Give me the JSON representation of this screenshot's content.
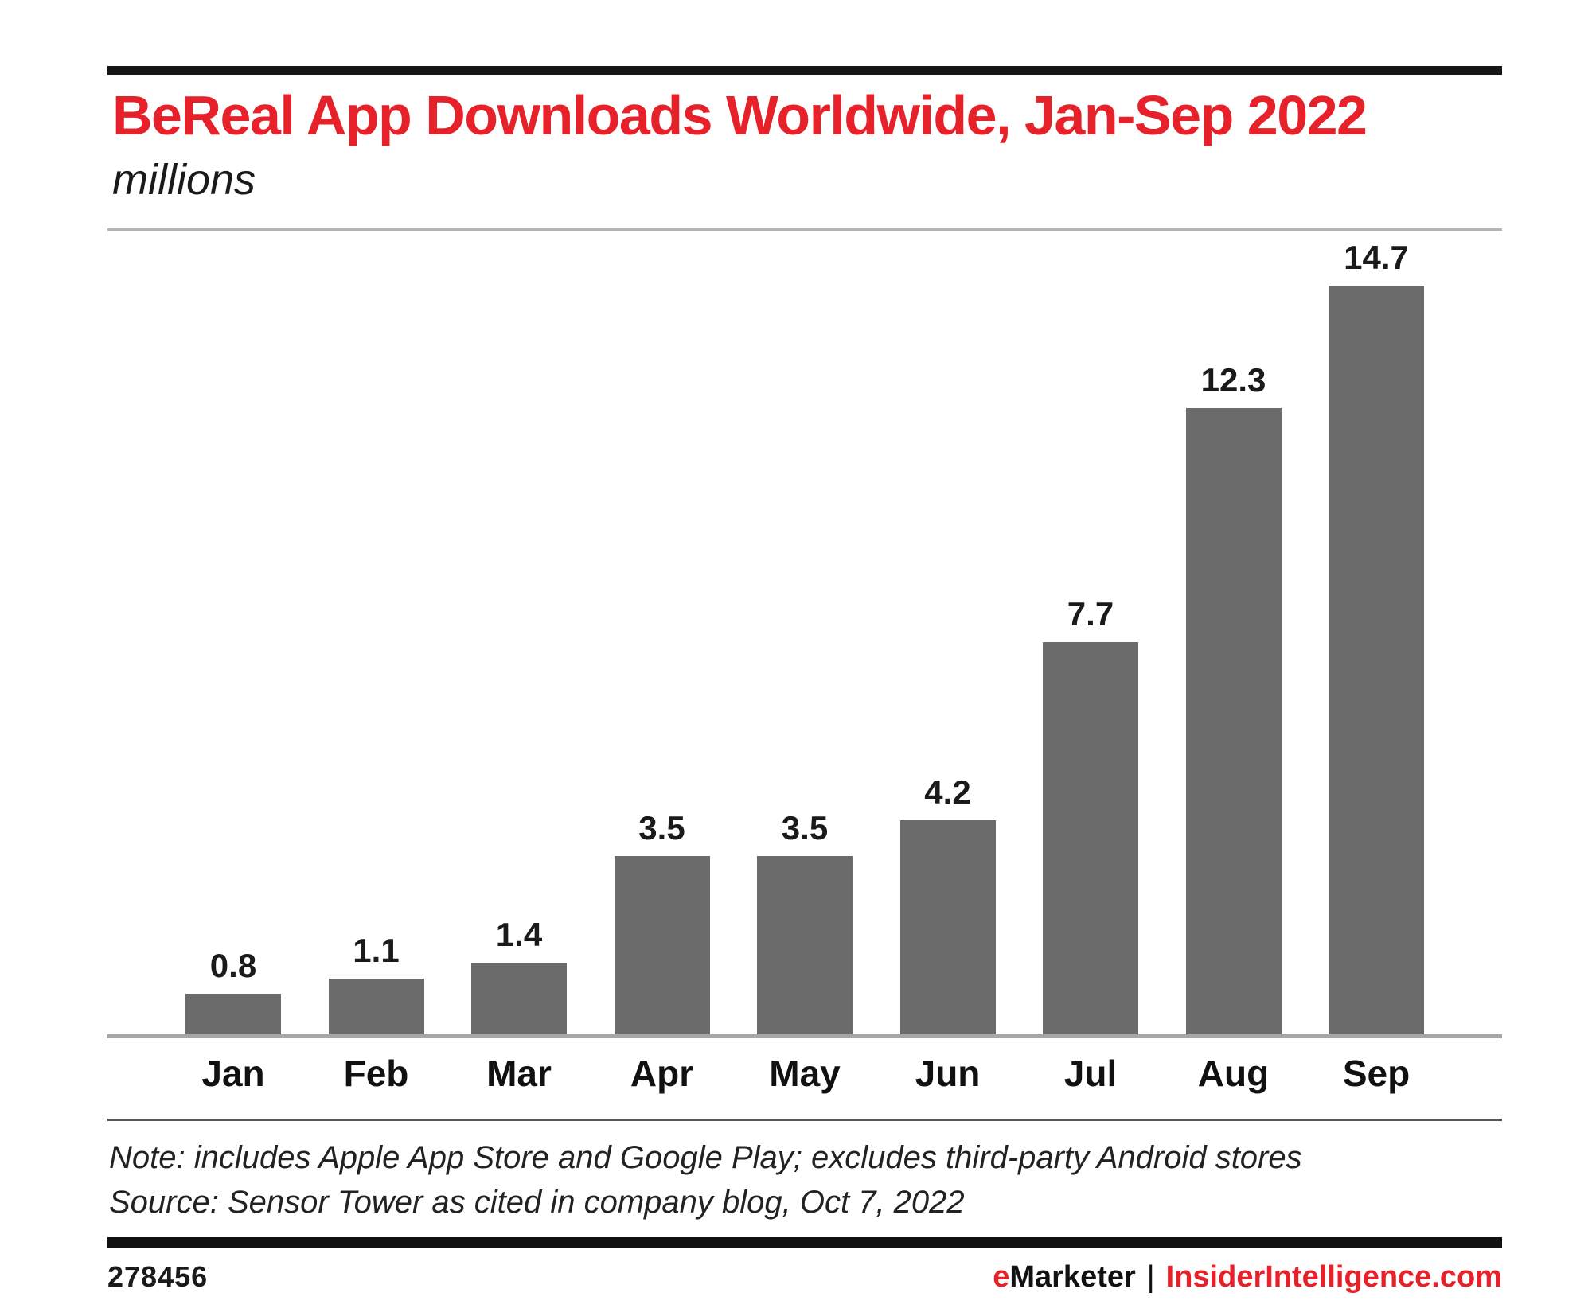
{
  "header": {
    "title": "BeReal App Downloads Worldwide, Jan-Sep 2022",
    "subtitle": "millions",
    "title_color": "#e62129"
  },
  "chart_data": {
    "type": "bar",
    "title": "BeReal App Downloads Worldwide, Jan-Sep 2022",
    "unit_label": "millions",
    "categories": [
      "Jan",
      "Feb",
      "Mar",
      "Apr",
      "May",
      "Jun",
      "Jul",
      "Aug",
      "Sep"
    ],
    "values": [
      0.8,
      1.1,
      1.4,
      3.5,
      3.5,
      4.2,
      7.7,
      12.3,
      14.7
    ],
    "value_labels": [
      "0.8",
      "1.1",
      "1.4",
      "3.5",
      "3.5",
      "4.2",
      "7.7",
      "12.3",
      "14.7"
    ],
    "xlabel": "",
    "ylabel": "millions",
    "ylim": [
      0,
      14.7
    ],
    "grid": false,
    "legend_position": "none",
    "bar_color": "#6b6b6b"
  },
  "footnote": {
    "note": "Note: includes Apple App Store and Google Play; excludes third-party Android stores",
    "source": "Source: Sensor Tower as cited in company blog, Oct 7, 2022"
  },
  "footer": {
    "chart_id": "278456",
    "brand_primary_prefix": "e",
    "brand_primary_rest": "Marketer",
    "separator": "|",
    "brand_secondary": "InsiderIntelligence.com",
    "brand_accent_color": "#e62129"
  }
}
